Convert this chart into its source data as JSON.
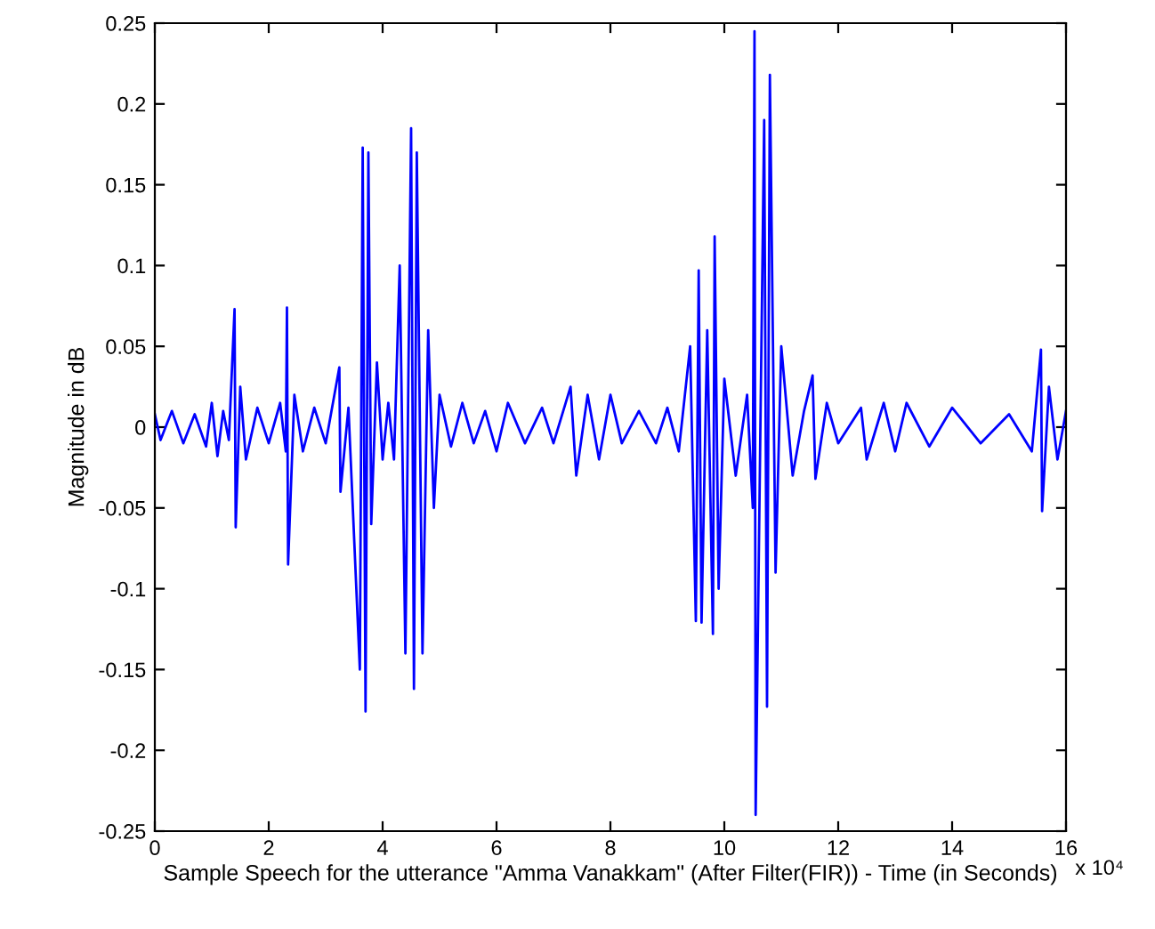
{
  "chart_data": {
    "type": "line",
    "xlabel": "Sample Speech for the utterance \"Amma Vanakkam\" (After Filter(FIR)) - Time (in Seconds)",
    "ylabel": "Magnitude in dB",
    "annotations": [
      "x 10⁴"
    ],
    "series": [
      {
        "color": "#0000ff",
        "x": [
          0,
          0.1,
          0.3,
          0.5,
          0.7,
          0.9,
          1.0,
          1.1,
          1.2,
          1.3,
          1.4,
          1.42,
          1.5,
          1.6,
          1.8,
          2.0,
          2.2,
          2.3,
          2.32,
          2.34,
          2.45,
          2.6,
          2.8,
          3.0,
          3.24,
          3.26,
          3.4,
          3.6,
          3.65,
          3.7,
          3.75,
          3.8,
          3.9,
          4.0,
          4.1,
          4.2,
          4.3,
          4.4,
          4.5,
          4.55,
          4.6,
          4.7,
          4.8,
          4.9,
          5.0,
          5.2,
          5.4,
          5.6,
          5.8,
          6.0,
          6.2,
          6.5,
          6.8,
          7.0,
          7.3,
          7.4,
          7.6,
          7.8,
          8.0,
          8.2,
          8.5,
          8.8,
          9.0,
          9.2,
          9.4,
          9.5,
          9.55,
          9.6,
          9.7,
          9.8,
          9.83,
          9.9,
          10.0,
          10.2,
          10.4,
          10.5,
          10.53,
          10.55,
          10.7,
          10.75,
          10.8,
          10.9,
          11.0,
          11.2,
          11.4,
          11.55,
          11.6,
          11.8,
          12.0,
          12.4,
          12.5,
          12.8,
          13.0,
          13.2,
          13.6,
          14.0,
          14.5,
          15.0,
          15.4,
          15.56,
          15.58,
          15.7,
          15.85,
          16.0
        ],
        "values": [
          0.008,
          -0.008,
          0.01,
          -0.01,
          0.008,
          -0.012,
          0.015,
          -0.018,
          0.01,
          -0.008,
          0.073,
          -0.062,
          0.025,
          -0.02,
          0.012,
          -0.01,
          0.015,
          -0.015,
          0.074,
          -0.085,
          0.02,
          -0.015,
          0.012,
          -0.01,
          0.037,
          -0.04,
          0.012,
          -0.15,
          0.173,
          -0.176,
          0.17,
          -0.06,
          0.04,
          -0.02,
          0.015,
          -0.02,
          0.1,
          -0.14,
          0.185,
          -0.162,
          0.17,
          -0.14,
          0.06,
          -0.05,
          0.02,
          -0.012,
          0.015,
          -0.01,
          0.01,
          -0.015,
          0.015,
          -0.01,
          0.012,
          -0.01,
          0.025,
          -0.03,
          0.02,
          -0.02,
          0.02,
          -0.01,
          0.01,
          -0.01,
          0.012,
          -0.015,
          0.05,
          -0.12,
          0.097,
          -0.121,
          0.06,
          -0.128,
          0.118,
          -0.1,
          0.03,
          -0.03,
          0.02,
          -0.05,
          0.245,
          -0.24,
          0.19,
          -0.173,
          0.218,
          -0.09,
          0.05,
          -0.03,
          0.01,
          0.032,
          -0.032,
          0.015,
          -0.01,
          0.012,
          -0.02,
          0.015,
          -0.015,
          0.015,
          -0.012,
          0.012,
          -0.01,
          0.008,
          -0.015,
          0.048,
          -0.052,
          0.025,
          -0.02,
          0.01
        ]
      }
    ],
    "xlim": [
      0,
      16
    ],
    "xticks": [
      0,
      2,
      4,
      6,
      8,
      10,
      12,
      14,
      16
    ],
    "ylim": [
      -0.25,
      0.25
    ],
    "yticks": [
      -0.25,
      -0.2,
      -0.15,
      -0.1,
      -0.05,
      0,
      0.05,
      0.1,
      0.15,
      0.2,
      0.25
    ],
    "grid": false,
    "legend": false,
    "marker": "none",
    "line_style": "solid"
  }
}
